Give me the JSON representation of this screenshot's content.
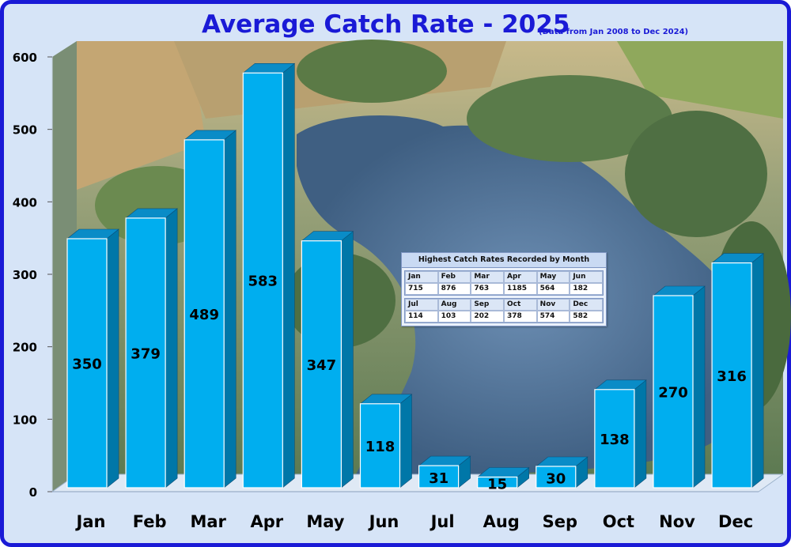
{
  "chart_data": {
    "type": "bar",
    "title": "Average Catch Rate - 2025",
    "subtitle": "(Data from Jan 2008  to Dec 2024)",
    "categories": [
      "Jan",
      "Feb",
      "Mar",
      "Apr",
      "May",
      "Jun",
      "Jul",
      "Aug",
      "Sep",
      "Oct",
      "Nov",
      "Dec"
    ],
    "values": [
      350,
      379,
      489,
      583,
      347,
      118,
      31,
      15,
      30,
      138,
      270,
      316
    ],
    "data_labels": [
      "350",
      "379",
      "489",
      "583",
      "347",
      "118",
      "31",
      "15",
      "30",
      "138",
      "270",
      "316"
    ],
    "ylim": [
      0,
      600
    ],
    "yticks": [
      0,
      100,
      200,
      300,
      400,
      500,
      600
    ],
    "ytick_labels": [
      "0",
      "100",
      "200",
      "300",
      "400",
      "500",
      "600"
    ],
    "grid": false,
    "bar_color": "#00aeef",
    "bar_side_color": "#0077a8",
    "bar_top_color": "#0a8cc7",
    "background": "aerial photograph of a lake"
  },
  "highest_table": {
    "title": "Highest Catch Rates Recorded by Month",
    "rows": [
      {
        "months": [
          "Jan",
          "Feb",
          "Mar",
          "Apr",
          "May",
          "Jun"
        ],
        "values": [
          "715",
          "876",
          "763",
          "1185",
          "564",
          "182"
        ]
      },
      {
        "months": [
          "Jul",
          "Aug",
          "Sep",
          "Oct",
          "Nov",
          "Dec"
        ],
        "values": [
          "114",
          "103",
          "202",
          "378",
          "574",
          "582"
        ]
      }
    ]
  },
  "colors": {
    "frame_border": "#1a1ad6",
    "title": "#1a1ad6"
  }
}
